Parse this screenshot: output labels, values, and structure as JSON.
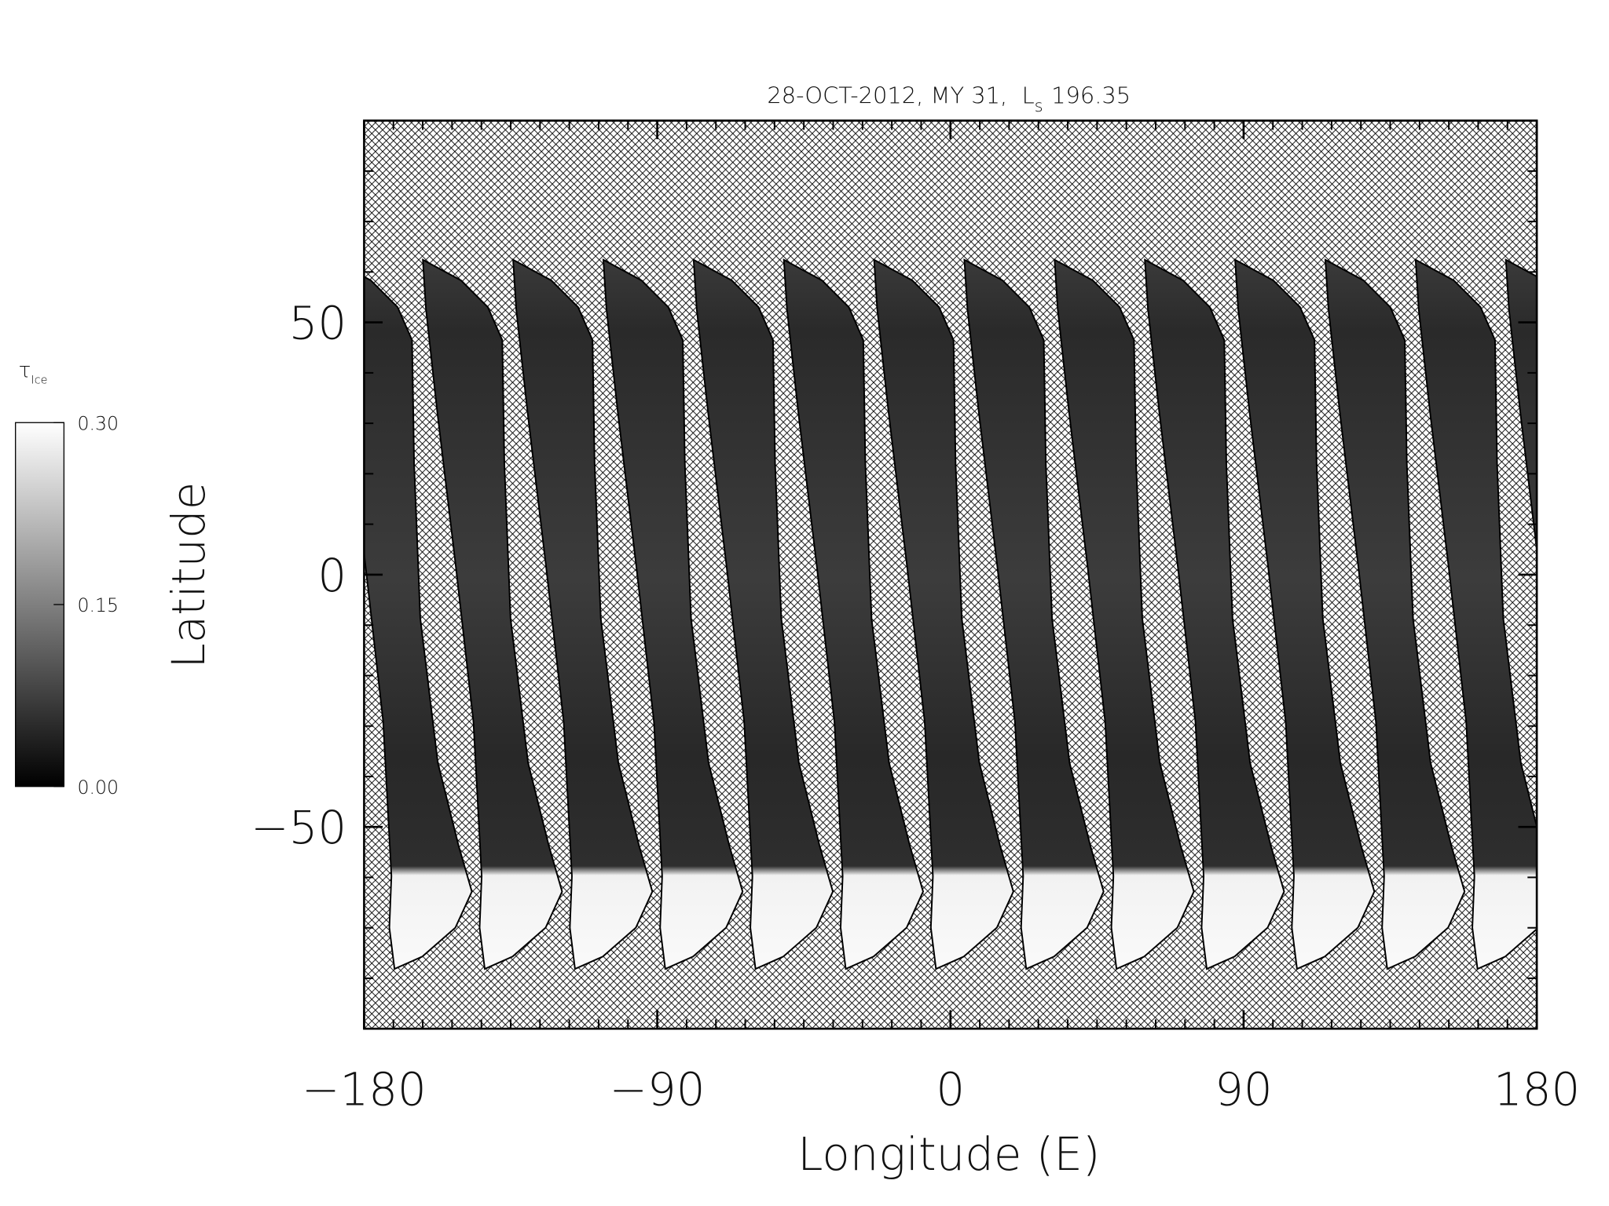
{
  "chart_data": {
    "type": "map",
    "title": {
      "date": "28-OCT-2012, MY 31,",
      "ls_symbol": "L",
      "ls_subscript": "s",
      "ls_value": "196.35"
    },
    "xlabel": "Longitude (E)",
    "ylabel": "Latitude",
    "xlim": [
      -180,
      180
    ],
    "ylim": [
      -90,
      90
    ],
    "xticks": [
      {
        "value": -180,
        "label": "−180"
      },
      {
        "value": -90,
        "label": "−90"
      },
      0,
      90,
      180
    ],
    "yticks": [
      {
        "value": -50,
        "label": "−50"
      },
      0,
      50
    ],
    "colorbar": {
      "label": "τ",
      "label_subscript": "Ice",
      "clim": [
        0,
        0.3
      ],
      "ticks": [
        {
          "value": 0,
          "label": "0.00"
        },
        {
          "value": 0.15,
          "label": "0.15"
        },
        {
          "value": 0.3,
          "label": "0.30"
        }
      ]
    }
  }
}
